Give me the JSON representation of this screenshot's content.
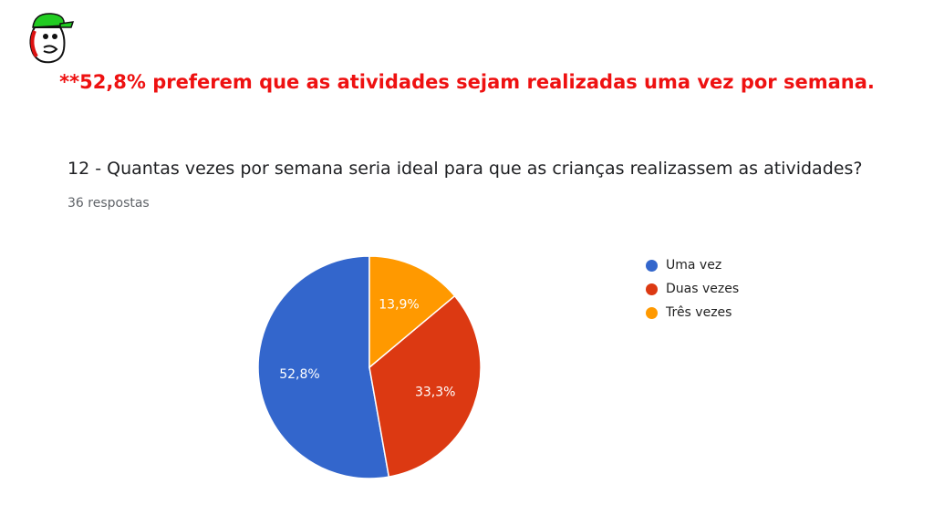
{
  "headline": {
    "text": "**52,8% preferem que as atividades sejam realizadas uma vez por semana.",
    "color": "#ee1111"
  },
  "question": {
    "title": "12 - Quantas vezes por semana seria ideal para que as crianças realizassem as atividades?",
    "responses": "36 respostas"
  },
  "logo": {
    "icon": "cartoon-mascot-icon",
    "cap_color": "#22cc22",
    "accent_color": "#dd1111"
  },
  "chart_data": {
    "type": "pie",
    "start_angle_deg": 90,
    "direction": "counterclockwise",
    "legend_position": "right",
    "slices": [
      {
        "label": "Uma vez",
        "value": 52.8,
        "display": "52,8%",
        "color": "#3366cc"
      },
      {
        "label": "Duas vezes",
        "value": 33.3,
        "display": "33,3%",
        "color": "#dc3912"
      },
      {
        "label": "Três vezes",
        "value": 13.9,
        "display": "13,9%",
        "color": "#ff9900"
      }
    ]
  }
}
